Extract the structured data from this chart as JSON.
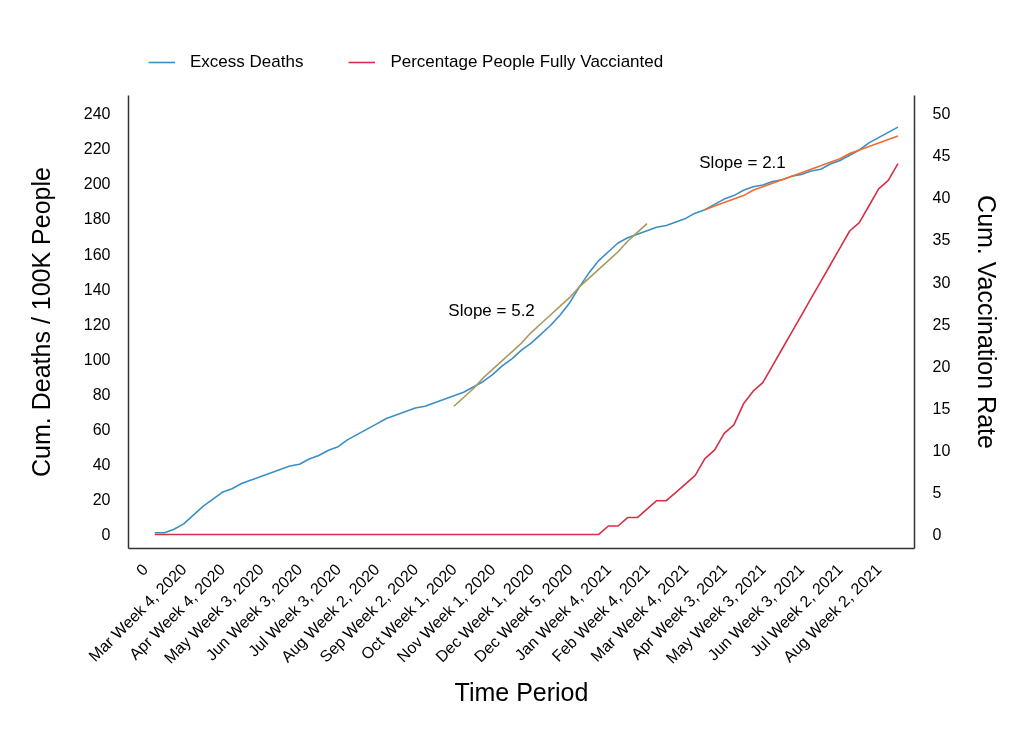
{
  "chart_data": {
    "type": "line",
    "xlabel": "Time Period",
    "ylabel": "Cum. Deaths / 100K People",
    "y2label": "Cum. Vaccination Rate",
    "legend": "top",
    "categories": [
      "0",
      null,
      null,
      null,
      "Mar Week 4, 2020",
      null,
      null,
      null,
      "Apr Week 4, 2020",
      null,
      null,
      null,
      "May Week 3, 2020",
      null,
      null,
      null,
      "Jun Week 3, 2020",
      null,
      null,
      null,
      "Jul Week 3, 2020",
      null,
      null,
      null,
      "Aug Week 2, 2020",
      null,
      null,
      null,
      "Sep Week 2, 2020",
      null,
      null,
      null,
      "Oct Week 1, 2020",
      null,
      null,
      null,
      "Nov Week 1, 2020",
      null,
      null,
      null,
      "Dec Week 1, 2020",
      null,
      null,
      null,
      "Dec Week 5, 2020",
      null,
      null,
      null,
      "Jan Week 4, 2021",
      null,
      null,
      null,
      "Feb Week 4, 2021",
      null,
      null,
      null,
      "Mar Week 4, 2021",
      null,
      null,
      null,
      "Apr Week 3, 2021",
      null,
      null,
      null,
      "May Week 3, 2021",
      null,
      null,
      null,
      "Jun Week 3, 2021",
      null,
      null,
      null,
      "Jul Week 2, 2021",
      null,
      null,
      null,
      "Aug Week 2, 2021",
      null,
      null
    ],
    "series": [
      {
        "name": "Excess Deaths",
        "color": "#3a8fc6",
        "values": [
          null,
          1,
          1,
          3,
          6,
          11,
          16,
          20,
          24,
          26,
          29,
          31,
          33,
          35,
          37,
          39,
          40,
          43,
          45,
          48,
          50,
          54,
          57,
          60,
          63,
          66,
          68,
          70,
          72,
          73,
          75,
          77,
          79,
          81,
          84,
          87,
          91,
          96,
          100,
          105,
          109,
          114,
          119,
          125,
          132,
          141,
          149,
          156,
          161,
          166,
          169,
          171,
          173,
          175,
          176,
          178,
          180,
          183,
          185,
          188,
          191,
          193,
          196,
          198,
          199,
          201,
          202,
          204,
          205,
          207,
          208,
          211,
          213,
          216,
          219,
          223,
          226,
          229,
          232
        ]
      },
      {
        "name": "Percentage People Fully Vaccianted",
        "color": "#d62f46",
        "axis": "y2",
        "values": [
          null,
          0,
          0,
          0,
          0,
          0,
          0,
          0,
          0,
          0,
          0,
          0,
          0,
          0,
          0,
          0,
          0,
          0,
          0,
          0,
          0,
          0,
          0,
          0,
          0,
          0,
          0,
          0,
          0,
          0,
          0,
          0,
          0,
          0,
          0,
          0,
          0,
          0,
          0,
          0,
          0,
          0,
          0,
          0,
          0,
          0,
          0,
          0,
          1,
          1,
          2,
          2,
          3,
          4,
          4,
          5,
          6,
          7,
          9,
          10,
          12,
          13,
          15.5,
          17,
          18,
          20,
          22,
          24,
          26,
          28,
          30,
          32,
          34,
          36,
          37,
          39,
          41,
          42,
          44
        ]
      },
      {
        "type": "line",
        "color": "#a8995c",
        "values": [
          null,
          null,
          null,
          null,
          null,
          null,
          null,
          null,
          null,
          null,
          null,
          null,
          null,
          null,
          null,
          null,
          null,
          null,
          null,
          null,
          null,
          null,
          null,
          null,
          null,
          null,
          null,
          null,
          null,
          null,
          null,
          null,
          73,
          78,
          83,
          89,
          94,
          99,
          104,
          109,
          115,
          120,
          125,
          130,
          135,
          141,
          146,
          151,
          156,
          161,
          167,
          172,
          177,
          null,
          null,
          null,
          null,
          null,
          null,
          null,
          null,
          null,
          null,
          null,
          null,
          null,
          null,
          null,
          null,
          null,
          null,
          null,
          null,
          null,
          null,
          null,
          null,
          null,
          null
        ]
      },
      {
        "type": "line",
        "color": "#f26b2e",
        "values": [
          null,
          null,
          null,
          null,
          null,
          null,
          null,
          null,
          null,
          null,
          null,
          null,
          null,
          null,
          null,
          null,
          null,
          null,
          null,
          null,
          null,
          null,
          null,
          null,
          null,
          null,
          null,
          null,
          null,
          null,
          null,
          null,
          null,
          null,
          null,
          null,
          null,
          null,
          null,
          null,
          null,
          null,
          null,
          null,
          null,
          null,
          null,
          null,
          null,
          null,
          null,
          null,
          null,
          null,
          null,
          null,
          null,
          null,
          185,
          187,
          189,
          191,
          193,
          196,
          198,
          200,
          202,
          204,
          206,
          208,
          210,
          212,
          214,
          217,
          219,
          221,
          223,
          225,
          227
        ]
      }
    ],
    "annotations": [
      "Slope = 5.2",
      "Slope = 2.1"
    ],
    "ylim": [
      -8,
      250
    ],
    "yticks": [
      0,
      20,
      40,
      60,
      80,
      100,
      120,
      140,
      160,
      180,
      200,
      220,
      240
    ],
    "y2lim": [
      -1.67,
      52.08
    ],
    "y2ticks": [
      0,
      5,
      10,
      15,
      20,
      25,
      30,
      35,
      40,
      45,
      50
    ]
  }
}
